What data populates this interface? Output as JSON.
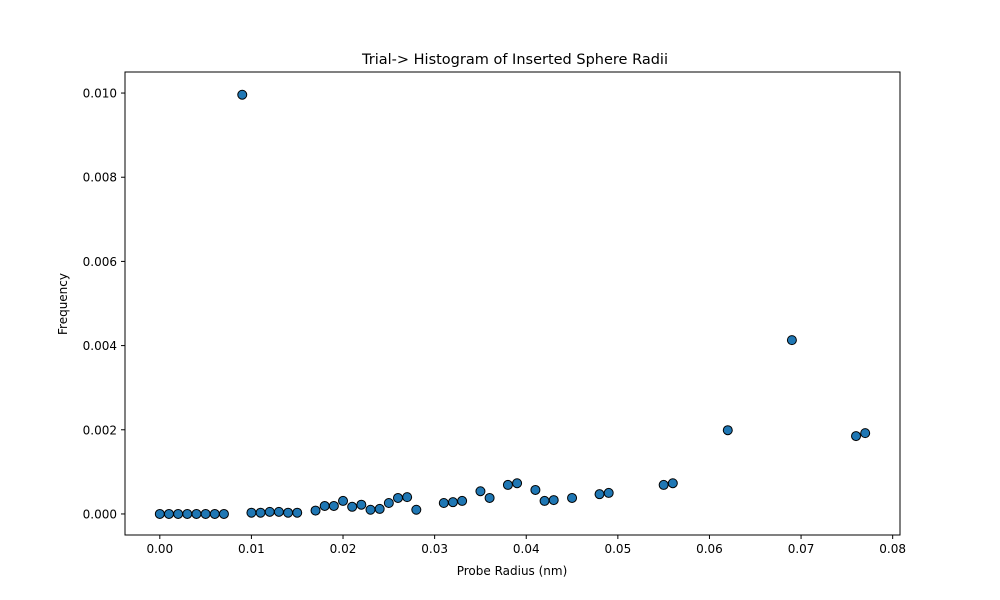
{
  "chart_data": {
    "type": "scatter",
    "title": "Trial-> Histogram of Inserted Sphere Radii",
    "xlabel": "Probe Radius (nm)",
    "ylabel": "Frequency",
    "xlim": [
      -0.0038,
      0.0808
    ],
    "ylim": [
      -0.0005,
      0.0105
    ],
    "xticks": [
      "0.00",
      "0.01",
      "0.02",
      "0.03",
      "0.04",
      "0.05",
      "0.06",
      "0.07",
      "0.08"
    ],
    "yticks": [
      "0.000",
      "0.002",
      "0.004",
      "0.006",
      "0.008",
      "0.010"
    ],
    "marker_color": "#1f77b4",
    "marker_edge": "#000000",
    "grid": false,
    "points": [
      {
        "x": 0.0,
        "y": 0.0
      },
      {
        "x": 0.001,
        "y": 0.0
      },
      {
        "x": 0.002,
        "y": 0.0
      },
      {
        "x": 0.003,
        "y": 0.0
      },
      {
        "x": 0.004,
        "y": 0.0
      },
      {
        "x": 0.005,
        "y": 0.0
      },
      {
        "x": 0.006,
        "y": 0.0
      },
      {
        "x": 0.007,
        "y": 0.0
      },
      {
        "x": 0.009,
        "y": 0.00996
      },
      {
        "x": 0.01,
        "y": 3e-05
      },
      {
        "x": 0.011,
        "y": 3e-05
      },
      {
        "x": 0.012,
        "y": 5e-05
      },
      {
        "x": 0.013,
        "y": 5e-05
      },
      {
        "x": 0.014,
        "y": 3e-05
      },
      {
        "x": 0.015,
        "y": 3e-05
      },
      {
        "x": 0.017,
        "y": 8e-05
      },
      {
        "x": 0.018,
        "y": 0.00019
      },
      {
        "x": 0.019,
        "y": 0.00019
      },
      {
        "x": 0.02,
        "y": 0.00031
      },
      {
        "x": 0.021,
        "y": 0.00017
      },
      {
        "x": 0.022,
        "y": 0.00022
      },
      {
        "x": 0.023,
        "y": 0.0001
      },
      {
        "x": 0.024,
        "y": 0.00012
      },
      {
        "x": 0.025,
        "y": 0.00026
      },
      {
        "x": 0.026,
        "y": 0.00038
      },
      {
        "x": 0.027,
        "y": 0.0004
      },
      {
        "x": 0.028,
        "y": 0.0001
      },
      {
        "x": 0.031,
        "y": 0.00026
      },
      {
        "x": 0.032,
        "y": 0.00028
      },
      {
        "x": 0.033,
        "y": 0.00031
      },
      {
        "x": 0.035,
        "y": 0.00054
      },
      {
        "x": 0.036,
        "y": 0.00038
      },
      {
        "x": 0.038,
        "y": 0.00069
      },
      {
        "x": 0.039,
        "y": 0.00073
      },
      {
        "x": 0.041,
        "y": 0.00057
      },
      {
        "x": 0.042,
        "y": 0.00031
      },
      {
        "x": 0.043,
        "y": 0.00033
      },
      {
        "x": 0.045,
        "y": 0.00038
      },
      {
        "x": 0.048,
        "y": 0.00047
      },
      {
        "x": 0.049,
        "y": 0.0005
      },
      {
        "x": 0.055,
        "y": 0.00069
      },
      {
        "x": 0.056,
        "y": 0.00073
      },
      {
        "x": 0.062,
        "y": 0.00199
      },
      {
        "x": 0.069,
        "y": 0.00413
      },
      {
        "x": 0.076,
        "y": 0.00185
      },
      {
        "x": 0.077,
        "y": 0.00192
      }
    ]
  }
}
